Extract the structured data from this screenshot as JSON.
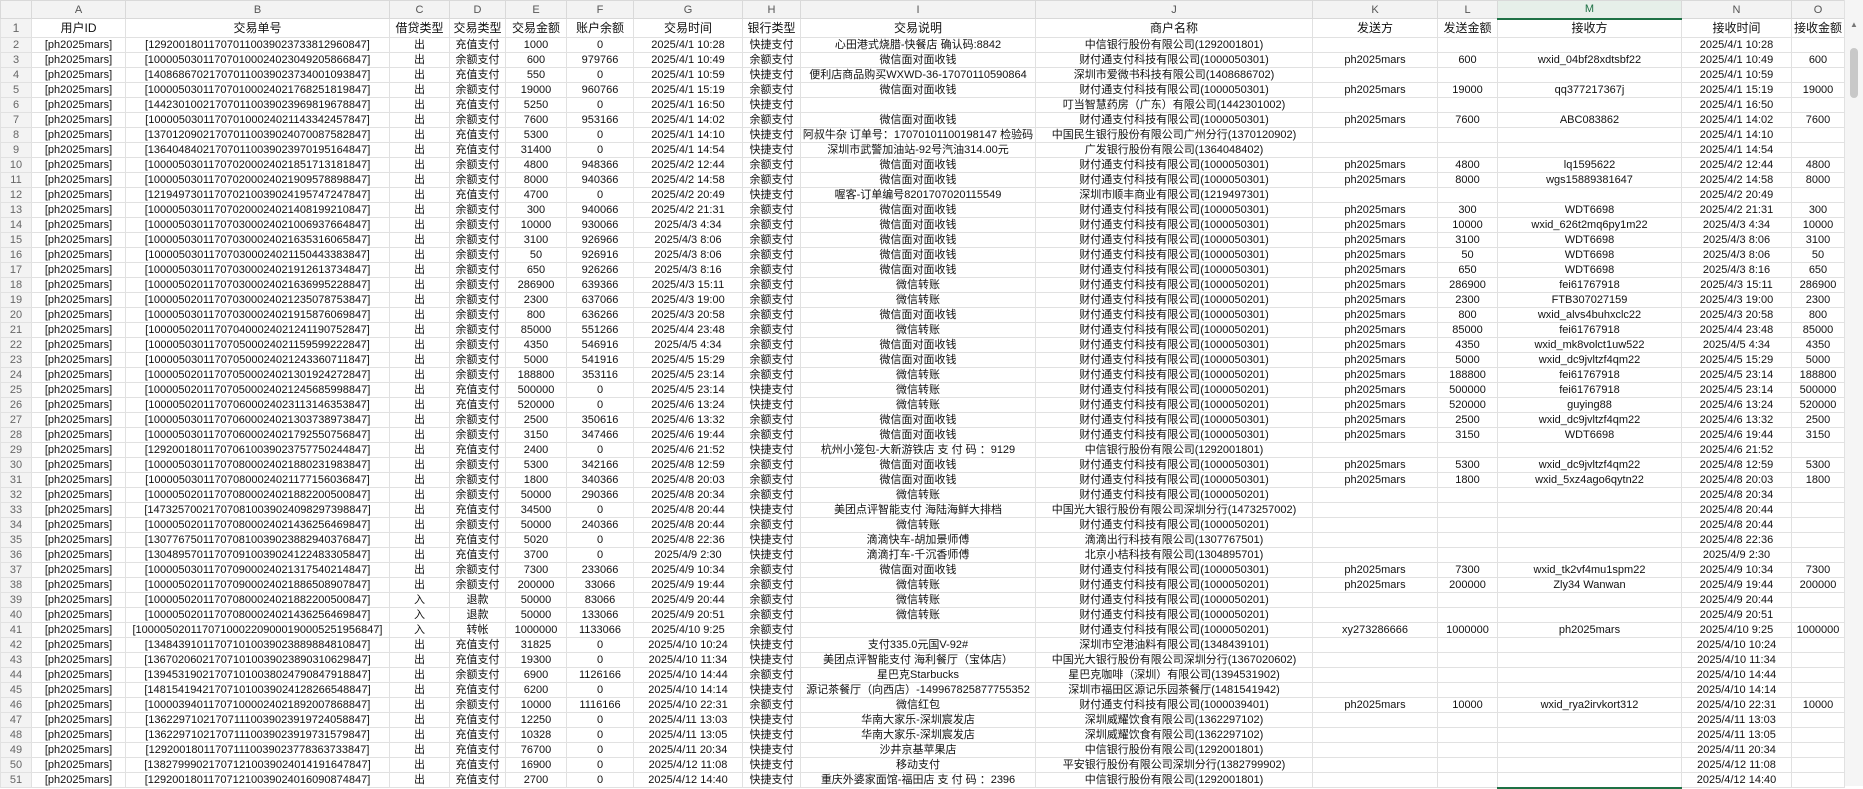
{
  "columns": [
    "A",
    "B",
    "C",
    "D",
    "E",
    "F",
    "G",
    "H",
    "I",
    "J",
    "K",
    "L",
    "M",
    "N",
    "O"
  ],
  "headers": [
    "用户ID",
    "交易单号",
    "借贷类型",
    "交易类型",
    "交易金额",
    "账户余额",
    "交易时间",
    "银行类型",
    "交易说明",
    "商户名称",
    "发送方",
    "发送金额",
    "接收方",
    "接收时间",
    "接收金额"
  ],
  "selected_column": "M",
  "accent_color": "#1e7145",
  "rows": [
    [
      "[ph2025mars]",
      "[129200180117070110039023733812960847]",
      "出",
      "充值支付",
      "1000",
      "0",
      "2025/4/1 10:28",
      "快捷支付",
      "心田港式烧腊-快餐店 确认码:8842",
      "中信银行股份有限公司(1292001801)",
      "",
      "",
      "",
      "2025/4/1 10:28",
      ""
    ],
    [
      "[ph2025mars]",
      "[100005030117070100024023049205866847]",
      "出",
      "余额支付",
      "600",
      "979766",
      "2025/4/1 10:49",
      "余额支付",
      "微信面对面收钱",
      "财付通支付科技有限公司(1000050301)",
      "ph2025mars",
      "600",
      "wxid_04bf28xdtsbf22",
      "2025/4/1 10:49",
      "600"
    ],
    [
      "[ph2025mars]",
      "[140868670217070110039023734001093847]",
      "出",
      "充值支付",
      "550",
      "0",
      "2025/4/1 10:59",
      "快捷支付",
      "便利店商品购买WXWD-36-17070110590864",
      "深圳市爱微书科技有限公司(1408686702)",
      "",
      "",
      "",
      "2025/4/1 10:59",
      ""
    ],
    [
      "[ph2025mars]",
      "[100005030117070100024021768251819847]",
      "出",
      "余额支付",
      "19000",
      "960766",
      "2025/4/1 15:19",
      "余额支付",
      "微信面对面收钱",
      "财付通支付科技有限公司(1000050301)",
      "ph2025mars",
      "19000",
      "qq377217367j",
      "2025/4/1 15:19",
      "19000"
    ],
    [
      "[ph2025mars]",
      "[144230100217070110039023969819678847]",
      "出",
      "充值支付",
      "5250",
      "0",
      "2025/4/1 16:50",
      "快捷支付",
      "",
      "叮当智慧药房（广东）有限公司(1442301002)",
      "",
      "",
      "",
      "2025/4/1 16:50",
      ""
    ],
    [
      "[ph2025mars]",
      "[100005030117070100024021143342457847]",
      "出",
      "余额支付",
      "7600",
      "953166",
      "2025/4/1 14:02",
      "余额支付",
      "微信面对面收钱",
      "财付通支付科技有限公司(1000050301)",
      "ph2025mars",
      "7600",
      "ABC083862",
      "2025/4/1 14:02",
      "7600"
    ],
    [
      "[ph2025mars]",
      "[137012090217070110039024070087582847]",
      "出",
      "充值支付",
      "5300",
      "0",
      "2025/4/1 14:10",
      "快捷支付",
      "阿叔牛杂 订单号：17070101100198147 检验码",
      "中国民生银行股份有限公司广州分行(1370120902)",
      "",
      "",
      "",
      "2025/4/1 14:10",
      ""
    ],
    [
      "[ph2025mars]",
      "[136404840217070110039023970195164847]",
      "出",
      "充值支付",
      "31400",
      "0",
      "2025/4/1 14:54",
      "快捷支付",
      "深圳市武警加油站-92号汽油314.00元",
      "广发银行股份有限公司(1364048402)",
      "",
      "",
      "",
      "2025/4/1 14:54",
      ""
    ],
    [
      "[ph2025mars]",
      "[100005030117070200024021851713181847]",
      "出",
      "余额支付",
      "4800",
      "948366",
      "2025/4/2 12:44",
      "余额支付",
      "微信面对面收钱",
      "财付通支付科技有限公司(1000050301)",
      "ph2025mars",
      "4800",
      "lq1595622",
      "2025/4/2 12:44",
      "4800"
    ],
    [
      "[ph2025mars]",
      "[100005030117070200024021909578898847]",
      "出",
      "余额支付",
      "8000",
      "940366",
      "2025/4/2 14:58",
      "余额支付",
      "微信面对面收钱",
      "财付通支付科技有限公司(1000050301)",
      "ph2025mars",
      "8000",
      "wgs15889381647",
      "2025/4/2 14:58",
      "8000"
    ],
    [
      "[ph2025mars]",
      "[121949730117070210039024195747247847]",
      "出",
      "充值支付",
      "4700",
      "0",
      "2025/4/2 20:49",
      "快捷支付",
      "喔客-订单编号8201707020115549",
      "深圳市顺丰商业有限公司(1219497301)",
      "",
      "",
      "",
      "2025/4/2 20:49",
      ""
    ],
    [
      "[ph2025mars]",
      "[100005030117070200024021408199210847]",
      "出",
      "余额支付",
      "300",
      "940066",
      "2025/4/2 21:31",
      "余额支付",
      "微信面对面收钱",
      "财付通支付科技有限公司(1000050301)",
      "ph2025mars",
      "300",
      "WDT6698",
      "2025/4/2 21:31",
      "300"
    ],
    [
      "[ph2025mars]",
      "[100005030117070300024021006937664847]",
      "出",
      "余额支付",
      "10000",
      "930066",
      "2025/4/3 4:34",
      "余额支付",
      "微信面对面收钱",
      "财付通支付科技有限公司(1000050301)",
      "ph2025mars",
      "10000",
      "wxid_626t2mq6py1m22",
      "2025/4/3 4:34",
      "10000"
    ],
    [
      "[ph2025mars]",
      "[100005030117070300024021635316065847]",
      "出",
      "余额支付",
      "3100",
      "926966",
      "2025/4/3 8:06",
      "余额支付",
      "微信面对面收钱",
      "财付通支付科技有限公司(1000050301)",
      "ph2025mars",
      "3100",
      "WDT6698",
      "2025/4/3 8:06",
      "3100"
    ],
    [
      "[ph2025mars]",
      "[100005030117070300024021150443383847]",
      "出",
      "余额支付",
      "50",
      "926916",
      "2025/4/3 8:06",
      "余额支付",
      "微信面对面收钱",
      "财付通支付科技有限公司(1000050301)",
      "ph2025mars",
      "50",
      "WDT6698",
      "2025/4/3 8:06",
      "50"
    ],
    [
      "[ph2025mars]",
      "[100005030117070300024021912613734847]",
      "出",
      "余额支付",
      "650",
      "926266",
      "2025/4/3 8:16",
      "余额支付",
      "微信面对面收钱",
      "财付通支付科技有限公司(1000050301)",
      "ph2025mars",
      "650",
      "WDT6698",
      "2025/4/3 8:16",
      "650"
    ],
    [
      "[ph2025mars]",
      "[100005020117070300024021636995228847]",
      "出",
      "余额支付",
      "286900",
      "639366",
      "2025/4/3 15:11",
      "余额支付",
      "微信转账",
      "财付通支付科技有限公司(1000050201)",
      "ph2025mars",
      "286900",
      "fei61767918",
      "2025/4/3 15:11",
      "286900"
    ],
    [
      "[ph2025mars]",
      "[100005020117070300024021235078753847]",
      "出",
      "余额支付",
      "2300",
      "637066",
      "2025/4/3 19:00",
      "余额支付",
      "微信转账",
      "财付通支付科技有限公司(1000050201)",
      "ph2025mars",
      "2300",
      "FTB307027159",
      "2025/4/3 19:00",
      "2300"
    ],
    [
      "[ph2025mars]",
      "[100005030117070300024021915876069847]",
      "出",
      "余额支付",
      "800",
      "636266",
      "2025/4/3 20:58",
      "余额支付",
      "微信面对面收钱",
      "财付通支付科技有限公司(1000050301)",
      "ph2025mars",
      "800",
      "wxid_alvs4buhxclc22",
      "2025/4/3 20:58",
      "800"
    ],
    [
      "[ph2025mars]",
      "[100005020117070400024021241190752847]",
      "出",
      "余额支付",
      "85000",
      "551266",
      "2025/4/4 23:48",
      "余额支付",
      "微信转账",
      "财付通支付科技有限公司(1000050201)",
      "ph2025mars",
      "85000",
      "fei61767918",
      "2025/4/4 23:48",
      "85000"
    ],
    [
      "[ph2025mars]",
      "[100005030117070500024021159599222847]",
      "出",
      "余额支付",
      "4350",
      "546916",
      "2025/4/5 4:34",
      "余额支付",
      "微信面对面收钱",
      "财付通支付科技有限公司(1000050301)",
      "ph2025mars",
      "4350",
      "wxid_mk8volct1uw522",
      "2025/4/5 4:34",
      "4350"
    ],
    [
      "[ph2025mars]",
      "[100005030117070500024021243360711847]",
      "出",
      "余额支付",
      "5000",
      "541916",
      "2025/4/5 15:29",
      "余额支付",
      "微信面对面收钱",
      "财付通支付科技有限公司(1000050301)",
      "ph2025mars",
      "5000",
      "wxid_dc9jvltzf4qm22",
      "2025/4/5 15:29",
      "5000"
    ],
    [
      "[ph2025mars]",
      "[100005020117070500024021301924272847]",
      "出",
      "余额支付",
      "188800",
      "353116",
      "2025/4/5 23:14",
      "余额支付",
      "微信转账",
      "财付通支付科技有限公司(1000050201)",
      "ph2025mars",
      "188800",
      "fei61767918",
      "2025/4/5 23:14",
      "188800"
    ],
    [
      "[ph2025mars]",
      "[100005020117070500024021245685998847]",
      "出",
      "充值支付",
      "500000",
      "0",
      "2025/4/5 23:14",
      "快捷支付",
      "微信转账",
      "财付通支付科技有限公司(1000050201)",
      "ph2025mars",
      "500000",
      "fei61767918",
      "2025/4/5 23:14",
      "500000"
    ],
    [
      "[ph2025mars]",
      "[100005020117070600024023113146353847]",
      "出",
      "充值支付",
      "520000",
      "0",
      "2025/4/6 13:24",
      "快捷支付",
      "微信转账",
      "财付通支付科技有限公司(1000050201)",
      "ph2025mars",
      "520000",
      "guying88",
      "2025/4/6 13:24",
      "520000"
    ],
    [
      "[ph2025mars]",
      "[100005030117070600024021303738973847]",
      "出",
      "余额支付",
      "2500",
      "350616",
      "2025/4/6 13:32",
      "余额支付",
      "微信面对面收钱",
      "财付通支付科技有限公司(1000050301)",
      "ph2025mars",
      "2500",
      "wxid_dc9jvltzf4qm22",
      "2025/4/6 13:32",
      "2500"
    ],
    [
      "[ph2025mars]",
      "[100005030117070600024021792550756847]",
      "出",
      "余额支付",
      "3150",
      "347466",
      "2025/4/6 19:44",
      "余额支付",
      "微信面对面收钱",
      "财付通支付科技有限公司(1000050301)",
      "ph2025mars",
      "3150",
      "WDT6698",
      "2025/4/6 19:44",
      "3150"
    ],
    [
      "[ph2025mars]",
      "[129200180117070610039023757750244847]",
      "出",
      "充值支付",
      "2400",
      "0",
      "2025/4/6 21:52",
      "快捷支付",
      "杭州小笼包-大新游铁店 支 付 码 ：9129",
      "中信银行股份有限公司(1292001801)",
      "",
      "",
      "",
      "2025/4/6 21:52",
      ""
    ],
    [
      "[ph2025mars]",
      "[100005030117070800024021880231983847]",
      "出",
      "余额支付",
      "5300",
      "342166",
      "2025/4/8 12:59",
      "余额支付",
      "微信面对面收钱",
      "财付通支付科技有限公司(1000050301)",
      "ph2025mars",
      "5300",
      "wxid_dc9jvltzf4qm22",
      "2025/4/8 12:59",
      "5300"
    ],
    [
      "[ph2025mars]",
      "[100005030117070800024021177156036847]",
      "出",
      "余额支付",
      "1800",
      "340366",
      "2025/4/8 20:03",
      "余额支付",
      "微信面对面收钱",
      "财付通支付科技有限公司(1000050301)",
      "ph2025mars",
      "1800",
      "wxid_5xz4ago6qytn22",
      "2025/4/8 20:03",
      "1800"
    ],
    [
      "[ph2025mars]",
      "[100005020117070800024021882200500847]",
      "出",
      "余额支付",
      "50000",
      "290366",
      "2025/4/8 20:34",
      "余额支付",
      "微信转账",
      "财付通支付科技有限公司(1000050201)",
      "",
      "",
      "",
      "2025/4/8 20:34",
      ""
    ],
    [
      "[ph2025mars]",
      "[147325700217070810039024098297398847]",
      "出",
      "充值支付",
      "34500",
      "0",
      "2025/4/8 20:44",
      "快捷支付",
      "美团点评智能支付 海陆海鲜大排档",
      "中国光大银行股份有限公司深圳分行(1473257002)",
      "",
      "",
      "",
      "2025/4/8 20:44",
      ""
    ],
    [
      "[ph2025mars]",
      "[100005020117070800024021436256469847]",
      "出",
      "余额支付",
      "50000",
      "240366",
      "2025/4/8 20:44",
      "余额支付",
      "微信转账",
      "财付通支付科技有限公司(1000050201)",
      "",
      "",
      "",
      "2025/4/8 20:44",
      ""
    ],
    [
      "[ph2025mars]",
      "[130776750117070810039023882940376847]",
      "出",
      "充值支付",
      "5020",
      "0",
      "2025/4/8 22:36",
      "快捷支付",
      "滴滴快车-胡加景师傅",
      "滴滴出行科技有限公司(1307767501)",
      "",
      "",
      "",
      "2025/4/8 22:36",
      ""
    ],
    [
      "[ph2025mars]",
      "[130489570117070910039024122483305847]",
      "出",
      "充值支付",
      "3700",
      "0",
      "2025/4/9 2:30",
      "快捷支付",
      "滴滴打车-千沉香师傅",
      "北京小桔科技有限公司(1304895701)",
      "",
      "",
      "",
      "2025/4/9 2:30",
      ""
    ],
    [
      "[ph2025mars]",
      "[100005030117070900024021317540214847]",
      "出",
      "余额支付",
      "7300",
      "233066",
      "2025/4/9 10:34",
      "余额支付",
      "微信面对面收钱",
      "财付通支付科技有限公司(1000050301)",
      "ph2025mars",
      "7300",
      "wxid_tk2vf4mu1spm22",
      "2025/4/9 10:34",
      "7300"
    ],
    [
      "[ph2025mars]",
      "[100005020117070900024021886508907847]",
      "出",
      "余额支付",
      "200000",
      "33066",
      "2025/4/9 19:44",
      "余额支付",
      "微信转账",
      "财付通支付科技有限公司(1000050201)",
      "ph2025mars",
      "200000",
      "Zly34 Wanwan",
      "2025/4/9 19:44",
      "200000"
    ],
    [
      "[ph2025mars]",
      "[100005020117070800024021882200500847]",
      "入",
      "退款",
      "50000",
      "83066",
      "2025/4/9 20:44",
      "余额支付",
      "微信转账",
      "财付通支付科技有限公司(1000050201)",
      "",
      "",
      "",
      "2025/4/9 20:44",
      ""
    ],
    [
      "[ph2025mars]",
      "[100005020117070800024021436256469847]",
      "入",
      "退款",
      "50000",
      "133066",
      "2025/4/9 20:51",
      "余额支付",
      "微信转账",
      "财付通支付科技有限公司(1000050201)",
      "",
      "",
      "",
      "2025/4/9 20:51",
      ""
    ],
    [
      "[ph2025mars]",
      "[1000050201170710002209000190005251956847]",
      "入",
      "转帐",
      "1000000",
      "1133066",
      "2025/4/10 9:25",
      "余额支付",
      "",
      "财付通支付科技有限公司(1000050201)",
      "xy273286666",
      "1000000",
      "ph2025mars",
      "2025/4/10 9:25",
      "1000000"
    ],
    [
      "[ph2025mars]",
      "[134843910117071010039023889884810847]",
      "出",
      "充值支付",
      "31825",
      "0",
      "2025/4/10 10:24",
      "快捷支付",
      "支付335.0元国V-92#",
      "深圳市空港油料有限公司(1348439101)",
      "",
      "",
      "",
      "2025/4/10 10:24",
      ""
    ],
    [
      "[ph2025mars]",
      "[136702060217071010039023890310629847]",
      "出",
      "充值支付",
      "19300",
      "0",
      "2025/4/10 11:34",
      "快捷支付",
      "美团点评智能支付 海利餐厅（宝体店）",
      "中国光大银行股份有限公司深圳分行(1367020602)",
      "",
      "",
      "",
      "2025/4/10 11:34",
      ""
    ],
    [
      "[ph2025mars]",
      "[139453190217071010038024790847918847]",
      "出",
      "余额支付",
      "6900",
      "1126166",
      "2025/4/10 14:44",
      "余额支付",
      "星巴克Starbucks",
      "星巴克咖啡（深圳）有限公司(1394531902)",
      "",
      "",
      "",
      "2025/4/10 14:44",
      ""
    ],
    [
      "[ph2025mars]",
      "[148154194217071010039024128266548847]",
      "出",
      "充值支付",
      "6200",
      "0",
      "2025/4/10 14:14",
      "快捷支付",
      "源记茶餐厅（向西店）-149967825877755352",
      "深圳市福田区源记乐园茶餐厅(1481541942)",
      "",
      "",
      "",
      "2025/4/10 14:14",
      ""
    ],
    [
      "[ph2025mars]",
      "[100003940117071000024021892007868847]",
      "出",
      "余额支付",
      "10000",
      "1116166",
      "2025/4/10 22:31",
      "余额支付",
      "微信红包",
      "财付通支付科技有限公司(1000039401)",
      "ph2025mars",
      "10000",
      "wxid_rya2irvkort312",
      "2025/4/10 22:31",
      "10000"
    ],
    [
      "[ph2025mars]",
      "[136229710217071110039023919724058847]",
      "出",
      "充值支付",
      "12250",
      "0",
      "2025/4/11 13:03",
      "快捷支付",
      "华南大家乐-深圳宸发店",
      "深圳威耀饮食有限公司(1362297102)",
      "",
      "",
      "",
      "2025/4/11 13:03",
      ""
    ],
    [
      "[ph2025mars]",
      "[136229710217071110039023919731579847]",
      "出",
      "充值支付",
      "10328",
      "0",
      "2025/4/11 13:05",
      "快捷支付",
      "华南大家乐-深圳宸发店",
      "深圳威耀饮食有限公司(1362297102)",
      "",
      "",
      "",
      "2025/4/11 13:05",
      ""
    ],
    [
      "[ph2025mars]",
      "[129200180117071110039023778363733847]",
      "出",
      "充值支付",
      "76700",
      "0",
      "2025/4/11 20:34",
      "快捷支付",
      "沙井京基苹果店",
      "中信银行股份有限公司(1292001801)",
      "",
      "",
      "",
      "2025/4/11 20:34",
      ""
    ],
    [
      "[ph2025mars]",
      "[138279990217071210039024014191647847]",
      "出",
      "充值支付",
      "16900",
      "0",
      "2025/4/12 11:08",
      "快捷支付",
      "移动支付",
      "平安银行股份有限公司深圳分行(1382799902)",
      "",
      "",
      "",
      "2025/4/12 11:08",
      ""
    ],
    [
      "[ph2025mars]",
      "[129200180117071210039024016090874847]",
      "出",
      "充值支付",
      "2700",
      "0",
      "2025/4/12 14:40",
      "快捷支付",
      "重庆外婆家面馆-福田店 支 付 码 ：2396",
      "中信银行股份有限公司(1292001801)",
      "",
      "",
      "",
      "2025/4/12 14:40",
      ""
    ]
  ]
}
